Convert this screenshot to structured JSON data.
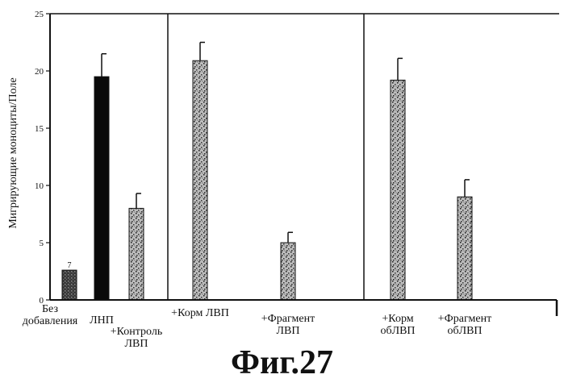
{
  "chart_data": {
    "type": "bar",
    "ylabel": "Мигрирующие моноциты/Поле",
    "ylim": [
      0,
      25
    ],
    "yticks": [
      0,
      5,
      10,
      15,
      20,
      25
    ],
    "grid": false,
    "groups": 3,
    "categories": [
      "Без\nдобавления",
      "ЛНП",
      "+Контроль\nЛВП",
      "+Корм ЛВП",
      "+Фрагмент\nЛВП",
      "+Корм\nобЛВП",
      "+Фрагмент\nобЛВП"
    ],
    "values": [
      2.6,
      19.5,
      8.0,
      20.9,
      5.0,
      19.2,
      9.0
    ],
    "errors": [
      0.0,
      2.0,
      1.3,
      1.6,
      0.9,
      1.9,
      1.5
    ],
    "bar_styles": [
      "stippled-dark",
      "solid",
      "stippled",
      "stippled",
      "stippled",
      "stippled",
      "stippled"
    ],
    "annotations": [
      {
        "bar": 0,
        "text": "7"
      }
    ]
  },
  "caption": "Фиг.27",
  "colors": {
    "ink": "#111111",
    "stipple_bg": "#b8b8b8"
  }
}
